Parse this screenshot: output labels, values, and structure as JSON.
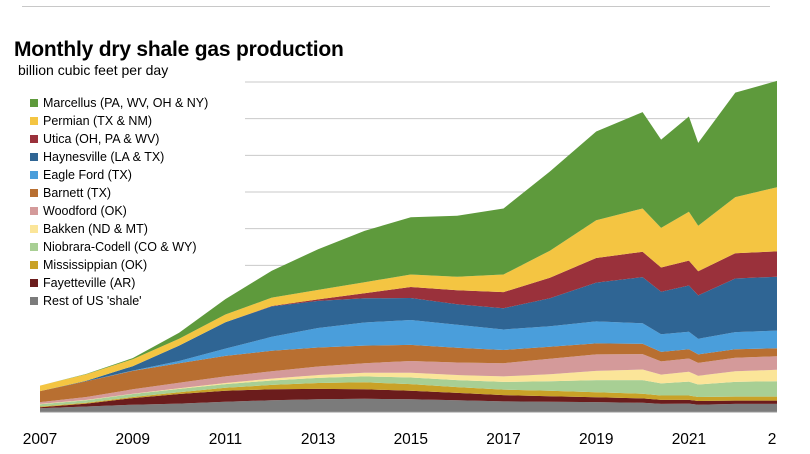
{
  "chart_data": {
    "type": "area",
    "stacked": true,
    "title": "Monthly dry shale gas production",
    "subtitle": "billion cubic feet per day",
    "xlabel": "",
    "ylabel": "",
    "xlim": [
      2007,
      2022.9
    ],
    "ylim": [
      0,
      90
    ],
    "grid": "horizontal",
    "legend_position": "top-left",
    "x_tick_labels": [
      "2007",
      "2009",
      "2011",
      "2013",
      "2015",
      "2017",
      "2019",
      "2021",
      "2"
    ],
    "x": [
      2007,
      2008,
      2009,
      2010,
      2011,
      2012,
      2013,
      2014,
      2015,
      2016,
      2017,
      2018,
      2019,
      2020,
      2020.4,
      2021,
      2021.2,
      2022,
      2022.9
    ],
    "series": [
      {
        "name": "Rest of US 'shale'",
        "color": "#7b7b7b",
        "values": [
          1.0,
          1.5,
          2.0,
          2.3,
          2.8,
          3.2,
          3.5,
          3.6,
          3.5,
          3.2,
          2.9,
          2.8,
          2.7,
          2.5,
          2.2,
          2.3,
          2.0,
          2.2,
          2.2
        ]
      },
      {
        "name": "Fayetteville (AR)",
        "color": "#6b1c1c",
        "values": [
          0.3,
          0.8,
          1.8,
          2.6,
          3.0,
          3.0,
          2.8,
          2.6,
          2.3,
          2.0,
          1.7,
          1.5,
          1.3,
          1.2,
          1.1,
          1.0,
          1.0,
          0.9,
          0.9
        ]
      },
      {
        "name": "Mississippian (OK)",
        "color": "#c9a227",
        "values": [
          0.2,
          0.2,
          0.3,
          0.5,
          0.8,
          1.2,
          1.6,
          1.9,
          1.8,
          1.6,
          1.5,
          1.5,
          1.4,
          1.3,
          1.2,
          1.2,
          1.1,
          1.1,
          1.1
        ]
      },
      {
        "name": "Niobrara-Codell (CO & WY)",
        "color": "#a8cf94",
        "values": [
          0.6,
          0.7,
          0.8,
          0.9,
          1.0,
          1.2,
          1.4,
          1.6,
          1.8,
          1.9,
          2.1,
          2.6,
          3.3,
          3.7,
          3.3,
          3.8,
          3.4,
          4.0,
          4.2
        ]
      },
      {
        "name": "Bakken (ND & MT)",
        "color": "#fbe599",
        "values": [
          0.1,
          0.1,
          0.1,
          0.2,
          0.3,
          0.5,
          0.8,
          1.0,
          1.3,
          1.4,
          1.5,
          1.9,
          2.5,
          2.9,
          2.4,
          2.7,
          2.4,
          2.9,
          3.1
        ]
      },
      {
        "name": "Woodford (OK)",
        "color": "#d49a9a",
        "values": [
          0.5,
          0.8,
          1.2,
          1.5,
          1.8,
          2.0,
          2.3,
          2.6,
          3.2,
          3.4,
          3.6,
          4.2,
          4.5,
          4.2,
          3.6,
          3.6,
          3.5,
          3.7,
          3.7
        ]
      },
      {
        "name": "Barnett (TX)",
        "color": "#b86f31",
        "values": [
          3.0,
          4.3,
          5.0,
          5.3,
          5.6,
          5.6,
          5.2,
          4.8,
          4.4,
          4.0,
          3.6,
          3.3,
          3.0,
          2.8,
          2.6,
          2.5,
          2.3,
          2.3,
          2.2
        ]
      },
      {
        "name": "Eagle Ford (TX)",
        "color": "#4a9edb",
        "values": [
          0.0,
          0.0,
          0.1,
          0.6,
          2.0,
          3.8,
          5.3,
          6.3,
          6.8,
          6.3,
          5.6,
          5.6,
          6.0,
          5.6,
          4.8,
          4.8,
          4.3,
          4.7,
          4.8
        ]
      },
      {
        "name": "Haynesville (LA & TX)",
        "color": "#2f6594",
        "values": [
          0.0,
          0.1,
          1.2,
          4.2,
          7.2,
          8.3,
          7.4,
          6.6,
          6.0,
          5.6,
          5.8,
          7.6,
          10.6,
          12.6,
          11.6,
          12.6,
          11.8,
          14.6,
          14.7
        ]
      },
      {
        "name": "Utica (OH, PA & WV)",
        "color": "#9a313b",
        "values": [
          0.0,
          0.0,
          0.0,
          0.0,
          0.0,
          0.1,
          0.4,
          1.4,
          3.0,
          3.8,
          4.4,
          5.6,
          6.7,
          6.9,
          6.6,
          6.8,
          6.6,
          6.9,
          6.9
        ]
      },
      {
        "name": "Permian (TX & NM)",
        "color": "#f4c542",
        "values": [
          1.5,
          1.8,
          1.9,
          1.9,
          2.1,
          2.3,
          2.6,
          3.0,
          3.4,
          3.7,
          4.8,
          7.4,
          10.3,
          11.8,
          10.8,
          13.3,
          12.4,
          15.3,
          17.5
        ]
      },
      {
        "name": "Marcellus (PA, WV, OH & NY)",
        "color": "#5e9a3c",
        "values": [
          0.0,
          0.1,
          0.3,
          1.6,
          4.2,
          7.3,
          11.1,
          14.0,
          15.6,
          16.6,
          18.0,
          21.6,
          24.2,
          26.3,
          24.1,
          26.0,
          22.6,
          28.5,
          29.0
        ]
      }
    ]
  }
}
